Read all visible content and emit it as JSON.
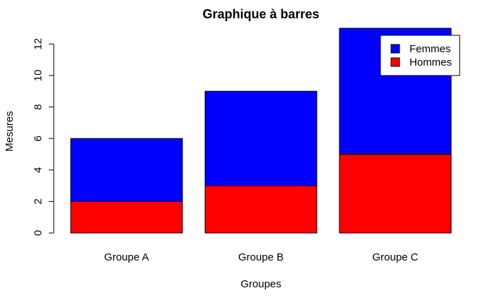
{
  "chart_data": {
    "type": "bar",
    "stacked": true,
    "title": "Graphique à barres",
    "xlabel": "Groupes",
    "ylabel": "Mesures",
    "categories": [
      "Groupe A",
      "Groupe B",
      "Groupe C"
    ],
    "series": [
      {
        "name": "Hommes",
        "values": [
          2,
          3,
          5
        ],
        "color": "#ff0000"
      },
      {
        "name": "Femmes",
        "values": [
          4,
          6,
          8
        ],
        "color": "#0000ff"
      }
    ],
    "ylim": [
      0,
      13
    ],
    "yticks": [
      0,
      2,
      4,
      6,
      8,
      10,
      12
    ],
    "grid": false,
    "legend": {
      "position": "top-right",
      "entries": [
        {
          "label": "Femmes",
          "color": "#0000ff"
        },
        {
          "label": "Hommes",
          "color": "#ff0000"
        }
      ]
    }
  }
}
